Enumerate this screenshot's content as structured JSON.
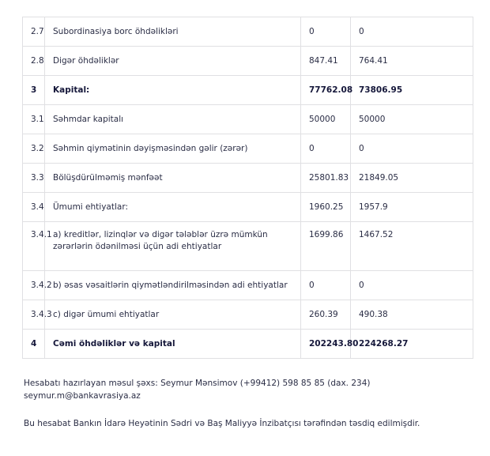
{
  "table": {
    "rows": [
      {
        "code": "2.7",
        "label": "Subordinasiya borc öhdəlikləri",
        "v1": "0",
        "v2": "0",
        "bold": false
      },
      {
        "code": "2.8",
        "label": "Digər öhdəliklər",
        "v1": "847.41",
        "v2": "764.41",
        "bold": false
      },
      {
        "code": "3",
        "label": "Kapital:",
        "v1": "77762.08",
        "v2": "73806.95",
        "bold": true
      },
      {
        "code": "3.1",
        "label": "Səhmdar kapitalı",
        "v1": "50000",
        "v2": "50000",
        "bold": false
      },
      {
        "code": "3.2",
        "label": "Səhmin qiymətinin dəyişməsindən gəlir (zərər)",
        "v1": "0",
        "v2": "0",
        "bold": false
      },
      {
        "code": "3.3",
        "label": "Bölüşdürülməmiş mənfəət",
        "v1": "25801.83",
        "v2": "21849.05",
        "bold": false
      },
      {
        "code": "3.4",
        "label": "Ümumi ehtiyatlar:",
        "v1": "1960.25",
        "v2": "1957.9",
        "bold": false
      },
      {
        "code": "3.4.1",
        "label": "a) kreditlər, lizinqlər və digər tələblər üzrə mümkün zərərlərin ödənilməsi üçün adi ehtiyatlar",
        "v1": "1699.86",
        "v2": "1467.52",
        "bold": false,
        "tall": true
      },
      {
        "code": "3.4.2",
        "label": "b) əsas vəsaitlərin qiymətləndirilməsindən adi ehtiyatlar",
        "v1": "0",
        "v2": "0",
        "bold": false
      },
      {
        "code": "3.4.3",
        "label": "c) digər ümumi ehtiyatlar",
        "v1": "260.39",
        "v2": "490.38",
        "bold": false
      },
      {
        "code": "4",
        "label": "Cəmi öhdəliklər və kapital",
        "v1": "202243.80",
        "v2": "224268.27",
        "bold": true
      }
    ]
  },
  "footer": {
    "contact": "Hesabatı hazırlayan məsul şəxs: Seymur Mənsimov (+99412) 598 85 85 (dax. 234)",
    "email": "seymur.m@bankavrasiya.az",
    "approval": "Bu hesabat Bankın İdarə Heyətinin Sədri və Baş Maliyyə İnzibatçısı tərəfindən təsdiq edilmişdir."
  }
}
